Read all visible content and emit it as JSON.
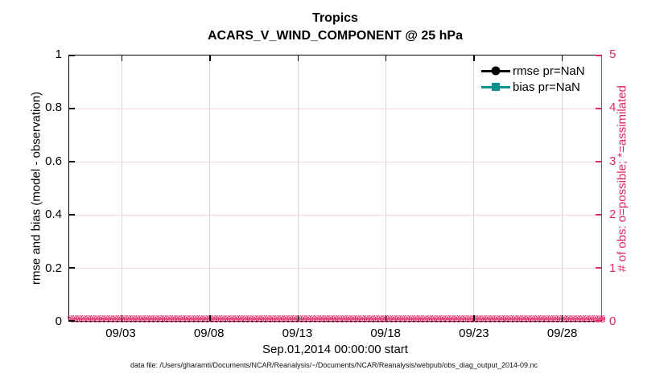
{
  "title": {
    "line1": "Tropics",
    "line2": "ACARS_V_WIND_COMPONENT @ 25 hPa"
  },
  "axes": {
    "left": {
      "label": "rmse and bias (model - observation)",
      "ticks": [
        "1",
        "0.8",
        "0.6",
        "0.4",
        "0.2",
        "0"
      ],
      "color": "#000000"
    },
    "right": {
      "label": "# of obs: o=possible; *=assimilated",
      "ticks": [
        "5",
        "4",
        "3",
        "2",
        "1",
        "0"
      ],
      "color": "#DE2864"
    },
    "x": {
      "ticks": [
        "09/03",
        "09/08",
        "09/13",
        "09/18",
        "09/23",
        "09/28"
      ],
      "label": "Sep.01,2014 00:00:00 start"
    }
  },
  "legend": [
    {
      "label": "rmse pr=NaN",
      "color": "#000000",
      "marker": "circle"
    },
    {
      "label": "bias pr=NaN",
      "color": "#0E918C",
      "marker": "square"
    }
  ],
  "footer": "data file: /Users/gharamti/Documents/NCAR/Reanalysis/~/Documents/NCAR/Reanalysis/webpub/obs_diag_output_2014-09.nc",
  "obs_markers": {
    "glyph": "⊗",
    "rows": 2,
    "per_row": 135,
    "color": "#DE2864"
  },
  "chart_data": {
    "type": "line",
    "title": "Tropics — ACARS_V_WIND_COMPONENT @ 25 hPa",
    "x_axis": {
      "label": "Sep.01,2014 00:00:00 start",
      "tick_labels": [
        "09/03",
        "09/08",
        "09/13",
        "09/18",
        "09/23",
        "09/28"
      ],
      "range": [
        "2014-09-01",
        "2014-09-30"
      ]
    },
    "left_y": {
      "label": "rmse and bias (model - observation)",
      "lim": [
        0,
        1
      ],
      "ticks": [
        0,
        0.2,
        0.4,
        0.6,
        0.8,
        1
      ]
    },
    "right_y": {
      "label": "# of obs: o=possible; *=assimilated",
      "lim": [
        0,
        5
      ],
      "ticks": [
        0,
        1,
        2,
        3,
        4,
        5
      ]
    },
    "series": [
      {
        "name": "rmse pr=NaN",
        "axis": "left",
        "color": "#000000",
        "marker": "filled-circle",
        "values": "all NaN - no curve plotted"
      },
      {
        "name": "bias pr=NaN",
        "axis": "left",
        "color": "#0E918C",
        "marker": "filled-square",
        "values": "all NaN - no curve plotted"
      },
      {
        "name": "# of obs possible (o)",
        "axis": "right",
        "color": "#DE2864",
        "marker": "o",
        "constant_value": 0
      },
      {
        "name": "# of obs assimilated (*)",
        "axis": "right",
        "color": "#DE2864",
        "marker": "*",
        "constant_value": 0
      }
    ],
    "grid": true,
    "legend_position": "top-right-inside"
  }
}
